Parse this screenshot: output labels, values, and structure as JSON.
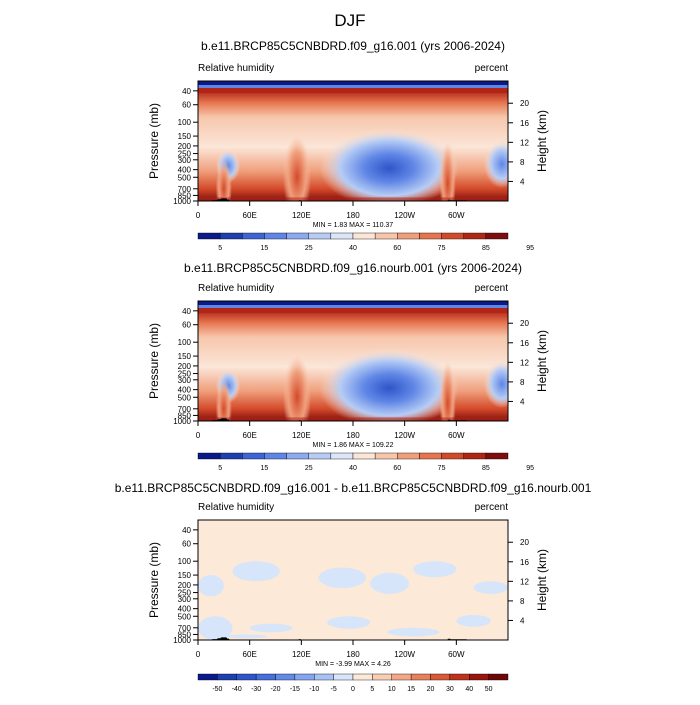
{
  "figure": {
    "title": "DJF",
    "panels": [
      {
        "title": "b.e11.BRCP85C5CNBDRD.f09_g16.001 (yrs 2006-2024)",
        "left_label": "Relative humidity",
        "right_label": "percent",
        "ylabel": "Pressure (mb)",
        "ylabel_right": "Height (km)",
        "stats": "MIN =   1.83  MAX = 110.37",
        "colorbar_labels": [
          "5",
          "15",
          "25",
          "40",
          "60",
          "75",
          "85",
          "95"
        ]
      },
      {
        "title": "b.e11.BRCP85C5CNBDRD.f09_g16.nourb.001 (yrs 2006-2024)",
        "left_label": "Relative humidity",
        "right_label": "percent",
        "ylabel": "Pressure (mb)",
        "ylabel_right": "Height (km)",
        "stats": "MIN =   1.86  MAX = 109.22",
        "colorbar_labels": [
          "5",
          "15",
          "25",
          "40",
          "60",
          "75",
          "85",
          "95"
        ]
      },
      {
        "title": "b.e11.BRCP85C5CNBDRD.f09_g16.001 - b.e11.BRCP85C5CNBDRD.f09_g16.nourb.001",
        "left_label": "Relative humidity",
        "right_label": "percent",
        "ylabel": "Pressure (mb)",
        "ylabel_right": "Height (km)",
        "stats": "MIN =  -3.99  MAX =   4.26",
        "colorbar_labels": [
          "-50",
          "-40",
          "-30",
          "-20",
          "-15",
          "-10",
          "-5",
          "0",
          "5",
          "10",
          "15",
          "20",
          "30",
          "40",
          "50"
        ]
      }
    ]
  },
  "colors": {
    "rh_scale": [
      "#0a1a8a",
      "#1d3fb0",
      "#3c64d6",
      "#5f86e6",
      "#8caaf0",
      "#b6ccf5",
      "#dbe6f8",
      "#fbe6d8",
      "#f7c6ab",
      "#f09f7c",
      "#e6754f",
      "#d34a2a",
      "#b02516",
      "#7f0d0d"
    ],
    "diff_scale": [
      "#0a1a8a",
      "#1d3fb0",
      "#2f55c8",
      "#466fdc",
      "#6489e6",
      "#86a5ee",
      "#a9c2f4",
      "#d6e5f9",
      "#fde9d8",
      "#f9cdb1",
      "#f2a888",
      "#e8805e",
      "#d85838",
      "#be321e",
      "#98150f",
      "#6e0707"
    ]
  },
  "chart_data": [
    {
      "type": "heatmap",
      "title": "b.e11.BRCP85C5CNBDRD.f09_g16.001 (yrs 2006-2024)",
      "variable": "Relative humidity",
      "units": "percent",
      "season": "DJF",
      "xlabel": "",
      "ylabel": "Pressure (mb)",
      "y2label": "Height (km)",
      "x_ticks": [
        "0",
        "60E",
        "120E",
        "180",
        "120W",
        "60W"
      ],
      "y_ticks": [
        "40",
        "60",
        "100",
        "150",
        "200",
        "250",
        "300",
        "400",
        "500",
        "700",
        "850",
        "1000"
      ],
      "y2_ticks": [
        "20",
        "16",
        "12",
        "8",
        "4"
      ],
      "y_scale": "log",
      "ylim": [
        1000,
        30
      ],
      "contour_levels": [
        5,
        10,
        15,
        20,
        25,
        30,
        40,
        50,
        60,
        70,
        75,
        80,
        85,
        90,
        95
      ],
      "colorbar_labels": [
        "5",
        "15",
        "25",
        "40",
        "60",
        "75",
        "85",
        "95"
      ],
      "min": 1.83,
      "max": 110.37
    },
    {
      "type": "heatmap",
      "title": "b.e11.BRCP85C5CNBDRD.f09_g16.nourb.001 (yrs 2006-2024)",
      "variable": "Relative humidity",
      "units": "percent",
      "season": "DJF",
      "xlabel": "",
      "ylabel": "Pressure (mb)",
      "y2label": "Height (km)",
      "x_ticks": [
        "0",
        "60E",
        "120E",
        "180",
        "120W",
        "60W"
      ],
      "y_ticks": [
        "40",
        "60",
        "100",
        "150",
        "200",
        "250",
        "300",
        "400",
        "500",
        "700",
        "850",
        "1000"
      ],
      "y2_ticks": [
        "20",
        "16",
        "12",
        "8",
        "4"
      ],
      "y_scale": "log",
      "ylim": [
        1000,
        30
      ],
      "contour_levels": [
        5,
        10,
        15,
        20,
        25,
        30,
        40,
        50,
        60,
        70,
        75,
        80,
        85,
        90,
        95
      ],
      "colorbar_labels": [
        "5",
        "15",
        "25",
        "40",
        "60",
        "75",
        "85",
        "95"
      ],
      "min": 1.86,
      "max": 109.22
    },
    {
      "type": "heatmap",
      "title": "b.e11.BRCP85C5CNBDRD.f09_g16.001 - b.e11.BRCP85C5CNBDRD.f09_g16.nourb.001",
      "variable": "Relative humidity",
      "units": "percent",
      "season": "DJF",
      "xlabel": "",
      "ylabel": "Pressure (mb)",
      "y2label": "Height (km)",
      "x_ticks": [
        "0",
        "60E",
        "120E",
        "180",
        "120W",
        "60W"
      ],
      "y_ticks": [
        "40",
        "60",
        "100",
        "150",
        "200",
        "250",
        "300",
        "400",
        "500",
        "700",
        "850",
        "1000"
      ],
      "y2_ticks": [
        "20",
        "16",
        "12",
        "8",
        "4"
      ],
      "y_scale": "log",
      "ylim": [
        1000,
        30
      ],
      "contour_levels": [
        -50,
        -40,
        -30,
        -20,
        -15,
        -10,
        -5,
        0,
        5,
        10,
        15,
        20,
        30,
        40,
        50
      ],
      "colorbar_labels": [
        "-50",
        "-40",
        "-30",
        "-20",
        "-15",
        "-10",
        "-5",
        "0",
        "5",
        "10",
        "15",
        "20",
        "30",
        "40",
        "50"
      ],
      "min": -3.99,
      "max": 4.26
    }
  ]
}
